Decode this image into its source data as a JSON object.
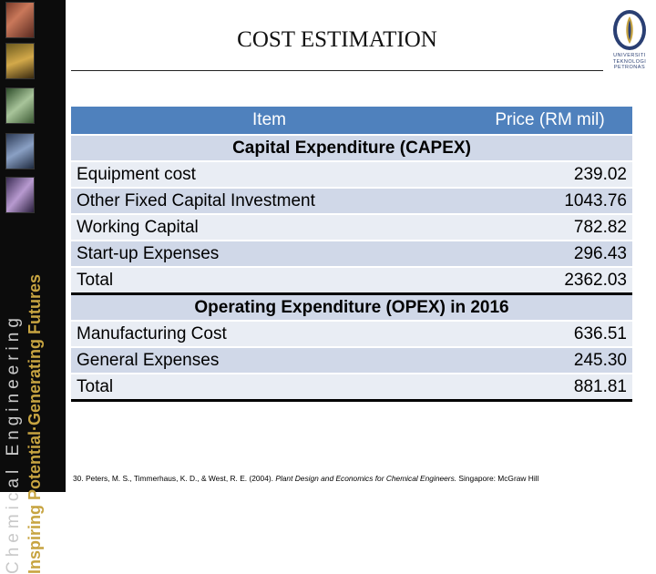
{
  "slide": {
    "title": "COST ESTIMATION"
  },
  "sidebar": {
    "line1": "Chemical Engineering",
    "line2": "Inspiring Potential·Generating Futures"
  },
  "logo": {
    "line1": "UNIVERSITI",
    "line2": "TEKNOLOGI",
    "line3": "PETRONAS"
  },
  "table": {
    "headers": {
      "item": "Item",
      "price": "Price (RM mil)"
    },
    "capex": {
      "heading": "Capital Expenditure (CAPEX)",
      "rows": [
        {
          "item": "Equipment cost",
          "price": "239.02"
        },
        {
          "item": "Other Fixed Capital Investment",
          "price": "1043.76"
        },
        {
          "item": "Working Capital",
          "price": "782.82"
        },
        {
          "item": "Start-up Expenses",
          "price": "296.43"
        },
        {
          "item": "Total",
          "price": "2362.03"
        }
      ]
    },
    "opex": {
      "heading": "Operating Expenditure (OPEX) in 2016",
      "rows": [
        {
          "item": "Manufacturing Cost",
          "price": "636.51"
        },
        {
          "item": "General Expenses",
          "price": "245.30"
        },
        {
          "item": "Total",
          "price": "881.81"
        }
      ]
    }
  },
  "reference": {
    "prefix": "30. Peters, M. S., Timmerhaus, K. D., & West, R. E. (2004). ",
    "book": "Plant Design and Economics for Chemical Engineers.",
    "suffix": " Singapore: McGraw Hill"
  }
}
